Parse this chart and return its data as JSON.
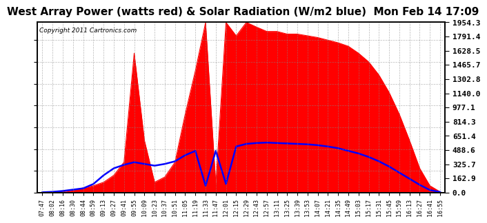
{
  "title": "West Array Power (watts red) & Solar Radiation (W/m2 blue)  Mon Feb 14 17:09",
  "copyright": "Copyright 2011 Cartronics.com",
  "background_color": "#ffffff",
  "plot_bg_color": "#ffffff",
  "grid_color": "#888888",
  "red_color": "#ff0000",
  "blue_color": "#0000ff",
  "title_fontsize": 11,
  "ylabel_right_values": [
    1954.3,
    1791.4,
    1628.5,
    1465.7,
    1302.8,
    1140.0,
    977.1,
    814.3,
    651.4,
    488.6,
    325.7,
    162.9,
    0.0
  ],
  "x_labels": [
    "07:47",
    "08:02",
    "08:16",
    "08:30",
    "08:44",
    "08:59",
    "09:13",
    "09:27",
    "09:41",
    "09:55",
    "10:09",
    "10:23",
    "10:37",
    "10:51",
    "11:05",
    "11:19",
    "11:33",
    "11:47",
    "12:01",
    "12:15",
    "12:29",
    "12:43",
    "12:57",
    "13:11",
    "13:25",
    "13:39",
    "13:53",
    "14:07",
    "14:21",
    "14:35",
    "14:49",
    "15:03",
    "15:17",
    "15:31",
    "15:45",
    "15:59",
    "16:13",
    "16:27",
    "16:41",
    "16:55"
  ],
  "ymax": 1954.3,
  "ymin": 0.0,
  "red_data": [
    2,
    4,
    10,
    30,
    55,
    80,
    120,
    200,
    350,
    1600,
    600,
    120,
    180,
    350,
    900,
    1400,
    1954,
    100,
    1954,
    1800,
    1954,
    1900,
    1850,
    1850,
    1820,
    1820,
    1800,
    1780,
    1750,
    1720,
    1680,
    1600,
    1500,
    1350,
    1150,
    900,
    600,
    280,
    80,
    10
  ],
  "blue_data": [
    5,
    10,
    20,
    35,
    50,
    100,
    200,
    280,
    320,
    350,
    330,
    310,
    330,
    360,
    430,
    480,
    80,
    480,
    100,
    530,
    560,
    570,
    575,
    570,
    565,
    560,
    555,
    545,
    530,
    510,
    480,
    450,
    410,
    360,
    300,
    230,
    160,
    90,
    30,
    8
  ]
}
